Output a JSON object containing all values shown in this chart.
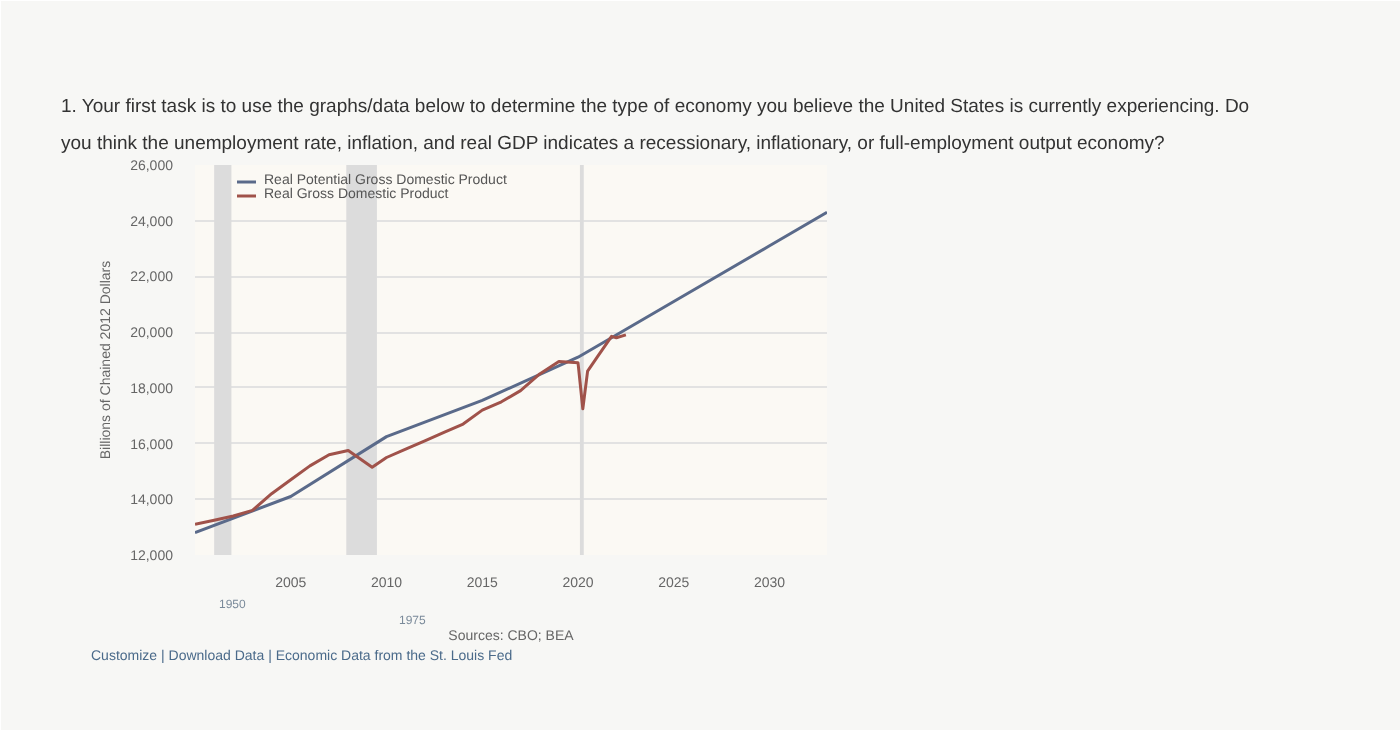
{
  "chart_data": {
    "type": "line",
    "ylabel": "Billions of Chained 2012 Dollars",
    "xlim": [
      2000,
      2033
    ],
    "xticks": [
      2005,
      2010,
      2015,
      2020,
      2025,
      2030
    ],
    "ylim": [
      12000,
      26000
    ],
    "yticks": [
      {
        "value": 12000,
        "label": "12,000"
      },
      {
        "value": 14000,
        "label": "14,000"
      },
      {
        "value": 16000,
        "label": "16,000"
      },
      {
        "value": 18000,
        "label": "18,000"
      },
      {
        "value": 20000,
        "label": "20,000"
      },
      {
        "value": 22000,
        "label": "22,000"
      },
      {
        "value": 24000,
        "label": "24,000"
      },
      {
        "value": 26000,
        "label": "26,000"
      }
    ],
    "grid": "y",
    "legend": "top left",
    "series": [
      {
        "name": "Real Potential Gross Domestic Product",
        "color": "#5a6a8a",
        "x": [
          2000,
          2005,
          2010,
          2015,
          2020,
          2025,
          2030,
          2033
        ],
        "values": [
          12800,
          14100,
          16250,
          17550,
          19100,
          21100,
          23100,
          24300
        ]
      },
      {
        "name": "Real Gross Domestic Product",
        "color": "#a0524a",
        "x": [
          2000,
          2001,
          2002,
          2003,
          2004,
          2005,
          2006,
          2007,
          2008,
          2009.25,
          2010,
          2011,
          2012,
          2013,
          2014,
          2015,
          2016,
          2017,
          2018,
          2019,
          2020,
          2020.25,
          2020.5,
          2021,
          2021.75,
          2022,
          2022.5
        ],
        "values": [
          13100,
          13250,
          13400,
          13600,
          14200,
          14700,
          15200,
          15600,
          15750,
          15150,
          15500,
          15800,
          16100,
          16400,
          16700,
          17200,
          17500,
          17900,
          18500,
          18950,
          18900,
          17250,
          18600,
          19100,
          19850,
          19800,
          19900
        ]
      }
    ],
    "bands": [
      {
        "axis": "x",
        "from": 2001.0,
        "to": 2001.9,
        "color": "#dcdcdc"
      },
      {
        "axis": "x",
        "from": 2007.9,
        "to": 2009.5,
        "color": "#dcdcdc"
      },
      {
        "axis": "x",
        "from": 2020.1,
        "to": 2020.3,
        "color": "#dcdcdc"
      }
    ],
    "annotations": [
      "1. Your first task is to use the graphs/data below to determine the type of economy you believe the United States is currently experiencing. Do",
      "you think the unemployment rate, inflation, and real GDP indicates a recessionary, inflationary, or full-employment output economy?",
      "Sources: CBO; BEA",
      "Customize  |  Download Data  |  Economic Data from the St. Louis Fed",
      "1950",
      "1975"
    ]
  }
}
